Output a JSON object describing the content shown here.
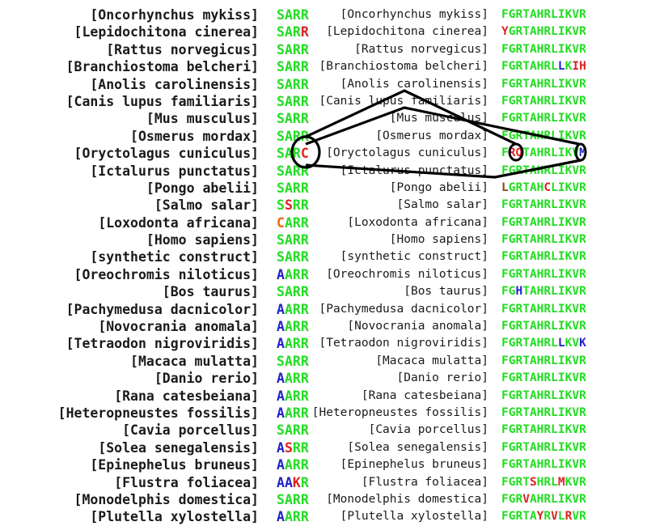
{
  "colors": {
    "conserved": "#22dd22",
    "variant_red": "#dd2222",
    "variant_blue": "#2222cc",
    "variant_orange": "#ee6611",
    "variant_brown": "#8a4a10",
    "label": "#1a1a1a",
    "highlight_line": "#000000"
  },
  "rows": [
    {
      "left": "[Oncorhynchus mykiss]",
      "motif1": "SARR",
      "mid": "[Oncorhynchus mykiss]",
      "motif2": "FGRTAHRLIKVR"
    },
    {
      "left": "[Lepidochitona cinerea]",
      "motif1": "SARR",
      "mid": "[Lepidochitona cinerea]",
      "motif2": "YGRTAHRLIKVR"
    },
    {
      "left": "[Rattus norvegicus]",
      "motif1": "SARR",
      "mid": "[Rattus norvegicus]",
      "motif2": "FGRTAHRLIKVR"
    },
    {
      "left": "[Branchiostoma belcheri]",
      "motif1": "SARR",
      "mid": "[Branchiostoma belcheri]",
      "motif2": "FGRTAHRLLKIH"
    },
    {
      "left": "[Anolis carolinensis]",
      "motif1": "SARR",
      "mid": "[Anolis carolinensis]",
      "motif2": "FGRTAHRLIKVR"
    },
    {
      "left": "[Canis lupus familiaris]",
      "motif1": "SARR",
      "mid": "[Canis lupus familiaris]",
      "motif2": "FGRTAHRLIKVR"
    },
    {
      "left": "[Mus musculus]",
      "motif1": "SARR",
      "mid": "[Mus musculus]",
      "motif2": "FGRTAHRLIKVR"
    },
    {
      "left": "[Osmerus mordax]",
      "motif1": "SARR",
      "mid": "[Osmerus mordax]",
      "motif2": "FGRTAHRLIKVR"
    },
    {
      "left": "[Oryctolagus cuniculus]",
      "motif1": "SARC",
      "mid": "[Oryctolagus cuniculus]",
      "motif2": "FRQTAHRLIKVM"
    },
    {
      "left": "[Ictalurus punctatus]",
      "motif1": "SARR",
      "mid": "[Ictalurus punctatus]",
      "motif2": "FGRTAHRLIKVR"
    },
    {
      "left": "[Pongo abelii]",
      "motif1": "SARR",
      "mid": "[Pongo abelii]",
      "motif2": "LGRTAHCLIKVR"
    },
    {
      "left": "[Salmo salar]",
      "motif1": "SSRR",
      "mid": "[Salmo salar]",
      "motif2": "FGRTAHRLIKVR"
    },
    {
      "left": "[Loxodonta africana]",
      "motif1": "CARR",
      "mid": "[Loxodonta africana]",
      "motif2": "FGRTAHRLIKVR"
    },
    {
      "left": "[Homo sapiens]",
      "motif1": "SARR",
      "mid": "[Homo sapiens]",
      "motif2": "FGRTAHRLIKVR"
    },
    {
      "left": "[synthetic construct]",
      "motif1": "SARR",
      "mid": "[synthetic construct]",
      "motif2": "FGRTAHRLIKVR"
    },
    {
      "left": "[Oreochromis niloticus]",
      "motif1": "AARR",
      "mid": "[Oreochromis niloticus]",
      "motif2": "FGRTAHRLIKVR"
    },
    {
      "left": "[Bos taurus]",
      "motif1": "SARR",
      "mid": "[Bos taurus]",
      "motif2": "FGHTAHRLIKVR"
    },
    {
      "left": "[Pachymedusa dacnicolor]",
      "motif1": "AARR",
      "mid": "[Pachymedusa dacnicolor]",
      "motif2": "FGRTAHRLIKVR"
    },
    {
      "left": "[Novocrania anomala]",
      "motif1": "AARR",
      "mid": "[Novocrania anomala]",
      "motif2": "FGRTAHRLIKVR"
    },
    {
      "left": "[Tetraodon nigroviridis]",
      "motif1": "AARR",
      "mid": "[Tetraodon nigroviridis]",
      "motif2": "FGRTAHRLLKVK"
    },
    {
      "left": "[Macaca mulatta]",
      "motif1": "SARR",
      "mid": "[Macaca mulatta]",
      "motif2": "FGRTAHRLIKVR"
    },
    {
      "left": "[Danio rerio]",
      "motif1": "AARR",
      "mid": "[Danio rerio]",
      "motif2": "FGRTAHRLIKVR"
    },
    {
      "left": "[Rana catesbeiana]",
      "motif1": "AARR",
      "mid": "[Rana catesbeiana]",
      "motif2": "FGRTAHRLIKVR"
    },
    {
      "left": "[Heteropneustes fossilis]",
      "motif1": "AARR",
      "mid": "[Heteropneustes fossilis]",
      "motif2": "FGRTAHRLIKVR"
    },
    {
      "left": "[Cavia porcellus]",
      "motif1": "SARR",
      "mid": "[Cavia porcellus]",
      "motif2": "FGRTAHRLIKVR"
    },
    {
      "left": "[Solea senegalensis]",
      "motif1": "ASRR",
      "mid": "[Solea senegalensis]",
      "motif2": "FGRTAHRLIKVR"
    },
    {
      "left": "[Epinephelus bruneus]",
      "motif1": "AARR",
      "mid": "[Epinephelus bruneus]",
      "motif2": "FGRTAHRLIKVR"
    },
    {
      "left": "[Flustra foliacea]",
      "motif1": "AAKR",
      "mid": "[Flustra foliacea]",
      "motif2": "FGRTSHRLMKVR"
    },
    {
      "left": "[Monodelphis domestica]",
      "motif1": "SARR",
      "mid": "[Monodelphis domestica]",
      "motif2": "FGRVAHRLIKVR"
    },
    {
      "left": "[Plutella xylostella]",
      "motif1": "AARR",
      "mid": "[Plutella xylostella]",
      "motif2": "FGRTAYRVLRVR"
    }
  ],
  "residue_colors": {
    "motif1": {
      "1": {
        "3": "variant_red"
      },
      "8": {
        "3": "variant_red"
      },
      "11": {
        "1": "variant_red"
      },
      "12": {
        "0": "variant_orange"
      },
      "15": {
        "0": "variant_blue"
      },
      "17": {
        "0": "variant_blue"
      },
      "18": {
        "0": "variant_blue"
      },
      "19": {
        "0": "variant_blue"
      },
      "21": {
        "0": "variant_blue"
      },
      "22": {
        "0": "variant_blue"
      },
      "23": {
        "0": "variant_blue"
      },
      "25": {
        "0": "variant_blue",
        "1": "variant_red"
      },
      "26": {
        "0": "variant_blue"
      },
      "27": {
        "0": "variant_blue",
        "1": "variant_blue",
        "2": "variant_red"
      },
      "29": {
        "0": "variant_blue"
      }
    },
    "motif2": {
      "1": {
        "0": "variant_red"
      },
      "3": {
        "8": "variant_blue",
        "10": "variant_red",
        "11": "variant_red"
      },
      "8": {
        "1": "variant_red",
        "2": "variant_red",
        "11": "variant_blue"
      },
      "10": {
        "0": "variant_brown",
        "6": "variant_red"
      },
      "16": {
        "2": "variant_blue"
      },
      "19": {
        "8": "variant_blue",
        "11": "variant_blue"
      },
      "27": {
        "4": "variant_red",
        "8": "variant_red"
      },
      "28": {
        "3": "variant_red"
      },
      "29": {
        "5": "variant_red",
        "7": "variant_red",
        "9": "variant_red"
      }
    }
  }
}
